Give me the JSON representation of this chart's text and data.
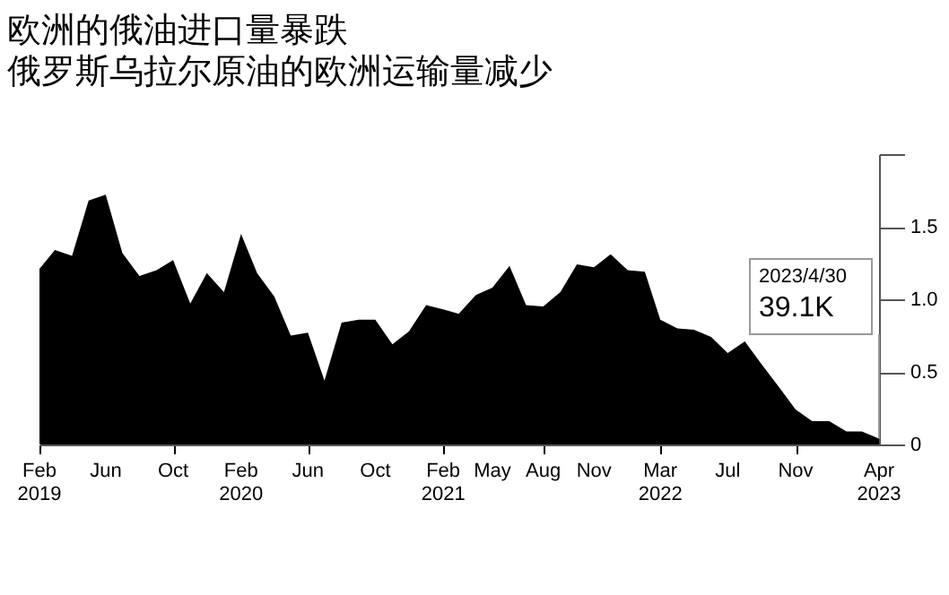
{
  "chart_data": {
    "type": "area",
    "title": "欧洲的俄油进口量暴跌",
    "subtitle": "俄罗斯乌拉尔原油的欧洲运输量减少",
    "x": [
      "2019-02",
      "2019-03",
      "2019-04",
      "2019-05",
      "2019-06",
      "2019-07",
      "2019-08",
      "2019-09",
      "2019-10",
      "2019-11",
      "2019-12",
      "2020-01",
      "2020-02",
      "2020-03",
      "2020-04",
      "2020-05",
      "2020-06",
      "2020-07",
      "2020-08",
      "2020-09",
      "2020-10",
      "2020-11",
      "2020-12",
      "2021-01",
      "2021-02",
      "2021-03",
      "2021-04",
      "2021-05",
      "2021-06",
      "2021-07",
      "2021-08",
      "2021-09",
      "2021-10",
      "2021-11",
      "2021-12",
      "2022-01",
      "2022-02",
      "2022-03",
      "2022-04",
      "2022-05",
      "2022-06",
      "2022-07",
      "2022-08",
      "2022-09",
      "2022-10",
      "2022-11",
      "2022-12",
      "2023-01",
      "2023-02",
      "2023-03",
      "2023-04"
    ],
    "series": [
      {
        "color": "#000000",
        "values": [
          1.21,
          1.34,
          1.3,
          1.68,
          1.72,
          1.32,
          1.16,
          1.2,
          1.27,
          0.97,
          1.18,
          1.05,
          1.45,
          1.18,
          1.02,
          0.75,
          0.77,
          0.44,
          0.84,
          0.86,
          0.86,
          0.69,
          0.78,
          0.96,
          0.93,
          0.9,
          1.03,
          1.08,
          1.23,
          0.96,
          0.95,
          1.05,
          1.24,
          1.22,
          1.31,
          1.2,
          1.19,
          0.86,
          0.8,
          0.79,
          0.74,
          0.63,
          0.71,
          0.55,
          0.4,
          0.24,
          0.16,
          0.16,
          0.09,
          0.09,
          0.04
        ]
      }
    ],
    "xlim": [
      "2019-02",
      "2023-04"
    ],
    "xticks": [
      {
        "value": "2019-02",
        "label": "Feb 2019"
      },
      {
        "value": "2019-06",
        "label": "Jun"
      },
      {
        "value": "2019-10",
        "label": "Oct"
      },
      {
        "value": "2020-02",
        "label": "Feb 2020"
      },
      {
        "value": "2020-06",
        "label": "Jun"
      },
      {
        "value": "2020-10",
        "label": "Oct"
      },
      {
        "value": "2021-02",
        "label": "Feb 2021"
      },
      {
        "value": "2021-05",
        "label": "May"
      },
      {
        "value": "2021-08",
        "label": "Aug"
      },
      {
        "value": "2021-11",
        "label": "Nov"
      },
      {
        "value": "2022-03",
        "label": "Mar 2022"
      },
      {
        "value": "2022-07",
        "label": "Jul"
      },
      {
        "value": "2022-11",
        "label": "Nov"
      },
      {
        "value": "2023-04",
        "label": "Apr 2023"
      }
    ],
    "ylim": [
      0,
      2.0
    ],
    "yticks": [
      0,
      0.5,
      {
        "value": 1.0,
        "label": "1.0"
      },
      1.5,
      {
        "value": 2.0,
        "label": null
      }
    ],
    "grid": false,
    "annotations": [
      {
        "text": "2023/4/30 39.1K",
        "x": "2023-04",
        "y": 0.04
      }
    ]
  }
}
